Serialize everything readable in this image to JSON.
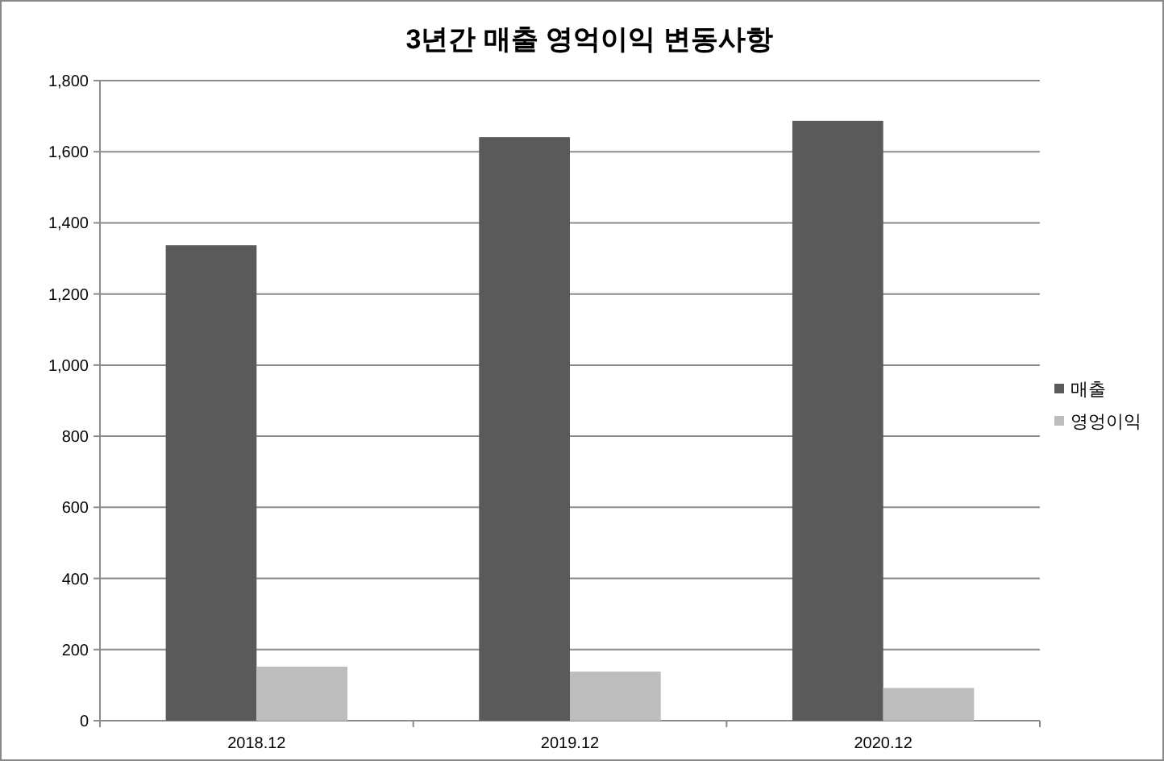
{
  "chart_data": {
    "type": "bar",
    "title": "3년간 매출 영억이익 변동사항",
    "categories": [
      "2018.12",
      "2019.12",
      "2020.12"
    ],
    "series": [
      {
        "name": "매출",
        "color": "#5a5a5a",
        "values": [
          1337,
          1641,
          1687
        ]
      },
      {
        "name": "영엉이익",
        "color": "#bdbdbd",
        "values": [
          152,
          138,
          92
        ]
      }
    ],
    "ylim": [
      0,
      1800
    ],
    "yticks": [
      0,
      {
        "value": 200,
        "label": "200"
      },
      {
        "value": 400,
        "label": "400"
      },
      {
        "value": 600,
        "label": "600"
      },
      {
        "value": 800,
        "label": "800"
      },
      {
        "value": 1000,
        "label": "1,000"
      },
      {
        "value": 1200,
        "label": "1,200"
      },
      {
        "value": 1400,
        "label": "1,400"
      },
      {
        "value": 1600,
        "label": "1,600"
      },
      {
        "value": 1800,
        "label": "1,800"
      }
    ],
    "grid": "y",
    "legend": "right"
  }
}
